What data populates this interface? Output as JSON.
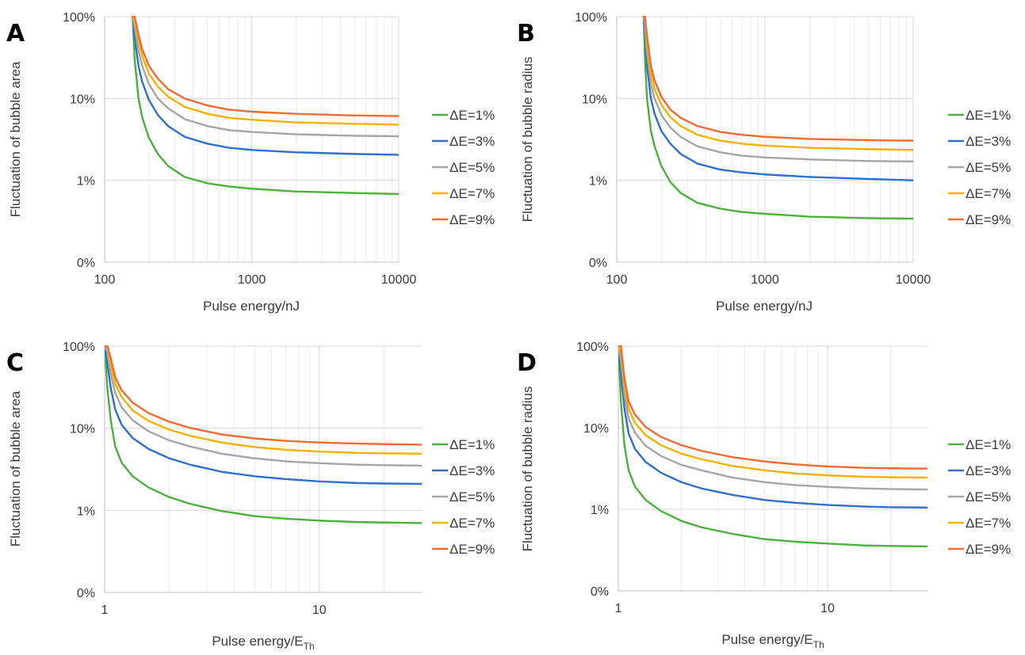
{
  "colors": {
    "green": "#4caf3f",
    "blue": "#2f6fc9",
    "gray": "#a5a5a5",
    "yellow": "#f5b100",
    "orange": "#ef6b33",
    "grid": "#d9d9d9"
  },
  "chart_data": [
    {
      "type": "line",
      "panel_label": "A",
      "xlabel": "Pulse energy/nJ",
      "xlabel_sub": "",
      "ylabel": "Fluctuation of bubble area",
      "xscale": "log",
      "yscale": "log",
      "xlim": [
        100,
        10000
      ],
      "ylim": [
        0.1,
        100
      ],
      "xticks": [
        100,
        1000,
        10000
      ],
      "xtick_labels": [
        "100",
        "1000",
        "10000"
      ],
      "yticks": [
        0.1,
        1,
        10,
        100
      ],
      "ytick_labels": [
        "0%",
        "1%",
        "10%",
        "100%"
      ],
      "grid": true,
      "legend_position": "right",
      "series": [
        {
          "name": "ΔE=1%",
          "color": "#4caf3f",
          "x": [
            155,
            160,
            170,
            180,
            200,
            230,
            270,
            350,
            500,
            700,
            1000,
            2000,
            5000,
            10000
          ],
          "y": [
            100,
            30,
            10,
            5.9,
            3.3,
            2.1,
            1.5,
            1.1,
            0.92,
            0.84,
            0.79,
            0.73,
            0.7,
            0.68
          ]
        },
        {
          "name": "ΔE=3%",
          "color": "#2f6fc9",
          "x": [
            155,
            160,
            170,
            180,
            200,
            230,
            270,
            350,
            500,
            700,
            1000,
            2000,
            5000,
            10000
          ],
          "y": [
            100,
            55,
            25,
            16,
            9.6,
            6.3,
            4.6,
            3.4,
            2.8,
            2.5,
            2.35,
            2.2,
            2.1,
            2.05
          ]
        },
        {
          "name": "ΔE=5%",
          "color": "#a5a5a5",
          "x": [
            155,
            160,
            170,
            180,
            200,
            230,
            270,
            350,
            500,
            700,
            1000,
            2000,
            5000,
            10000
          ],
          "y": [
            100,
            75,
            38,
            25,
            15,
            10,
            7.6,
            5.6,
            4.6,
            4.1,
            3.9,
            3.65,
            3.5,
            3.45
          ]
        },
        {
          "name": "ΔE=7%",
          "color": "#f5b100",
          "x": [
            155,
            160,
            170,
            180,
            200,
            230,
            270,
            350,
            500,
            700,
            1000,
            2000,
            5000,
            10000
          ],
          "y": [
            100,
            90,
            50,
            33,
            20,
            14,
            10.5,
            7.9,
            6.5,
            5.8,
            5.5,
            5.1,
            4.9,
            4.8
          ]
        },
        {
          "name": "ΔE=9%",
          "color": "#ef6b33",
          "x": [
            155,
            160,
            170,
            180,
            200,
            230,
            270,
            350,
            500,
            700,
            1000,
            2000,
            5000,
            10000
          ],
          "y": [
            100,
            100,
            60,
            40,
            25,
            17.5,
            13,
            10,
            8.2,
            7.3,
            6.9,
            6.5,
            6.2,
            6.1
          ]
        }
      ]
    },
    {
      "type": "line",
      "panel_label": "B",
      "xlabel": "Pulse energy/nJ",
      "xlabel_sub": "",
      "ylabel": "Fluctuation of bubble radius",
      "xscale": "log",
      "yscale": "log",
      "xlim": [
        100,
        10000
      ],
      "ylim": [
        0.1,
        100
      ],
      "xticks": [
        100,
        1000,
        10000
      ],
      "xtick_labels": [
        "100",
        "1000",
        "10000"
      ],
      "yticks": [
        0.1,
        1,
        10,
        100
      ],
      "ytick_labels": [
        "0%",
        "1%",
        "10%",
        "100%"
      ],
      "grid": true,
      "legend_position": "right",
      "series": [
        {
          "name": "ΔE=1%",
          "color": "#4caf3f",
          "x": [
            152,
            155,
            160,
            170,
            180,
            200,
            230,
            270,
            350,
            500,
            700,
            1000,
            2000,
            5000,
            10000
          ],
          "y": [
            100,
            30,
            10,
            4,
            2.6,
            1.5,
            0.95,
            0.7,
            0.53,
            0.45,
            0.41,
            0.39,
            0.36,
            0.345,
            0.34
          ]
        },
        {
          "name": "ΔE=3%",
          "color": "#2f6fc9",
          "x": [
            152,
            155,
            160,
            170,
            180,
            200,
            230,
            270,
            350,
            500,
            700,
            1000,
            2000,
            5000,
            10000
          ],
          "y": [
            100,
            60,
            25,
            10,
            6.5,
            4,
            2.8,
            2.1,
            1.6,
            1.35,
            1.25,
            1.18,
            1.1,
            1.04,
            1.0
          ]
        },
        {
          "name": "ΔE=5%",
          "color": "#a5a5a5",
          "x": [
            152,
            155,
            160,
            170,
            180,
            200,
            230,
            270,
            350,
            500,
            700,
            1000,
            2000,
            5000,
            10000
          ],
          "y": [
            100,
            80,
            36,
            15,
            10,
            6.3,
            4.4,
            3.4,
            2.6,
            2.2,
            2.0,
            1.9,
            1.8,
            1.72,
            1.7
          ]
        },
        {
          "name": "ΔE=7%",
          "color": "#f5b100",
          "x": [
            152,
            155,
            160,
            170,
            180,
            200,
            230,
            270,
            350,
            500,
            700,
            1000,
            2000,
            5000,
            10000
          ],
          "y": [
            100,
            100,
            48,
            20,
            13,
            8.4,
            5.9,
            4.6,
            3.6,
            3.05,
            2.8,
            2.65,
            2.5,
            2.4,
            2.35
          ]
        },
        {
          "name": "ΔE=9%",
          "color": "#ef6b33",
          "x": [
            152,
            155,
            160,
            170,
            180,
            200,
            230,
            270,
            350,
            500,
            700,
            1000,
            2000,
            5000,
            10000
          ],
          "y": [
            100,
            100,
            58,
            25,
            16.5,
            10.5,
            7.3,
            5.8,
            4.6,
            3.9,
            3.6,
            3.4,
            3.2,
            3.1,
            3.05
          ]
        }
      ]
    },
    {
      "type": "line",
      "panel_label": "C",
      "xlabel": "Pulse energy/E",
      "xlabel_sub": "Th",
      "ylabel": "Fluctuation of bubble area",
      "xscale": "log",
      "yscale": "log",
      "xlim": [
        1,
        30
      ],
      "ylim": [
        0.1,
        100
      ],
      "xticks": [
        1,
        10
      ],
      "xtick_labels": [
        "1",
        "10"
      ],
      "yticks": [
        0.1,
        1,
        10,
        100
      ],
      "ytick_labels": [
        "0%",
        "1%",
        "10%",
        "100%"
      ],
      "grid": true,
      "legend_position": "right",
      "series": [
        {
          "name": "ΔE=1%",
          "color": "#4caf3f",
          "x": [
            1.0,
            1.03,
            1.07,
            1.12,
            1.2,
            1.35,
            1.6,
            2,
            2.5,
            3.5,
            5,
            7,
            10,
            15,
            20,
            30
          ],
          "y": [
            100,
            30,
            12,
            6,
            3.8,
            2.6,
            1.9,
            1.45,
            1.2,
            0.98,
            0.85,
            0.79,
            0.75,
            0.72,
            0.71,
            0.7
          ]
        },
        {
          "name": "ΔE=3%",
          "color": "#2f6fc9",
          "x": [
            1.0,
            1.03,
            1.07,
            1.12,
            1.2,
            1.35,
            1.6,
            2,
            2.5,
            3.5,
            5,
            7,
            10,
            15,
            20,
            30
          ],
          "y": [
            100,
            60,
            30,
            17,
            11,
            7.6,
            5.6,
            4.3,
            3.6,
            2.95,
            2.6,
            2.4,
            2.25,
            2.15,
            2.12,
            2.1
          ]
        },
        {
          "name": "ΔE=5%",
          "color": "#a5a5a5",
          "x": [
            1.0,
            1.03,
            1.07,
            1.12,
            1.2,
            1.35,
            1.6,
            2,
            2.5,
            3.5,
            5,
            7,
            10,
            15,
            20,
            30
          ],
          "y": [
            100,
            85,
            45,
            27,
            18,
            12.5,
            9.2,
            7.1,
            6,
            4.9,
            4.3,
            3.95,
            3.75,
            3.6,
            3.55,
            3.5
          ]
        },
        {
          "name": "ΔE=7%",
          "color": "#f5b100",
          "x": [
            1.0,
            1.03,
            1.07,
            1.12,
            1.2,
            1.35,
            1.6,
            2,
            2.5,
            3.5,
            5,
            7,
            10,
            15,
            20,
            30
          ],
          "y": [
            100,
            100,
            58,
            35,
            24,
            16.5,
            12.3,
            9.6,
            8.1,
            6.7,
            5.9,
            5.45,
            5.2,
            5.0,
            4.95,
            4.9
          ]
        },
        {
          "name": "ΔE=9%",
          "color": "#ef6b33",
          "x": [
            1.0,
            1.03,
            1.07,
            1.12,
            1.2,
            1.35,
            1.6,
            2,
            2.5,
            3.5,
            5,
            7,
            10,
            15,
            20,
            30
          ],
          "y": [
            100,
            100,
            70,
            42,
            29,
            20.5,
            15.3,
            12,
            10.1,
            8.4,
            7.5,
            7.0,
            6.7,
            6.5,
            6.4,
            6.3
          ]
        }
      ]
    },
    {
      "type": "line",
      "panel_label": "D",
      "xlabel": "Pulse energy/E",
      "xlabel_sub": "Th",
      "ylabel": "Fluctuation of bubble radius",
      "xscale": "log",
      "yscale": "log",
      "xlim": [
        1,
        30
      ],
      "ylim": [
        0.1,
        100
      ],
      "xticks": [
        1,
        10
      ],
      "xtick_labels": [
        "1",
        "10"
      ],
      "yticks": [
        0.1,
        1,
        10,
        100
      ],
      "ytick_labels": [
        "0%",
        "1%",
        "10%",
        "100%"
      ],
      "grid": true,
      "legend_position": "right",
      "series": [
        {
          "name": "ΔE=1%",
          "color": "#4caf3f",
          "x": [
            1.0,
            1.03,
            1.07,
            1.12,
            1.2,
            1.35,
            1.6,
            2,
            2.5,
            3.5,
            5,
            7,
            10,
            15,
            20,
            30
          ],
          "y": [
            100,
            20,
            6,
            3,
            1.9,
            1.3,
            0.95,
            0.72,
            0.6,
            0.5,
            0.43,
            0.4,
            0.38,
            0.36,
            0.355,
            0.35
          ]
        },
        {
          "name": "ΔE=3%",
          "color": "#2f6fc9",
          "x": [
            1.0,
            1.03,
            1.07,
            1.12,
            1.2,
            1.35,
            1.6,
            2,
            2.5,
            3.5,
            5,
            7,
            10,
            15,
            20,
            30
          ],
          "y": [
            100,
            45,
            17,
            8.5,
            5.5,
            3.8,
            2.8,
            2.15,
            1.8,
            1.5,
            1.3,
            1.2,
            1.13,
            1.08,
            1.06,
            1.05
          ]
        },
        {
          "name": "ΔE=5%",
          "color": "#a5a5a5",
          "x": [
            1.0,
            1.03,
            1.07,
            1.12,
            1.2,
            1.35,
            1.6,
            2,
            2.5,
            3.5,
            5,
            7,
            10,
            15,
            20,
            30
          ],
          "y": [
            100,
            65,
            25,
            13,
            8.7,
            6,
            4.5,
            3.5,
            3.0,
            2.45,
            2.15,
            1.98,
            1.88,
            1.8,
            1.77,
            1.75
          ]
        },
        {
          "name": "ΔE=7%",
          "color": "#f5b100",
          "x": [
            1.0,
            1.03,
            1.07,
            1.12,
            1.2,
            1.35,
            1.6,
            2,
            2.5,
            3.5,
            5,
            7,
            10,
            15,
            20,
            30
          ],
          "y": [
            100,
            85,
            33,
            17,
            11.5,
            8.1,
            6.1,
            4.8,
            4.1,
            3.4,
            3.0,
            2.75,
            2.6,
            2.5,
            2.47,
            2.45
          ]
        },
        {
          "name": "ΔE=9%",
          "color": "#ef6b33",
          "x": [
            1.0,
            1.03,
            1.07,
            1.12,
            1.2,
            1.35,
            1.6,
            2,
            2.5,
            3.5,
            5,
            7,
            10,
            15,
            20,
            30
          ],
          "y": [
            100,
            100,
            40,
            21,
            14.5,
            10.2,
            7.7,
            6.1,
            5.2,
            4.35,
            3.85,
            3.55,
            3.35,
            3.22,
            3.18,
            3.15
          ]
        }
      ]
    }
  ]
}
